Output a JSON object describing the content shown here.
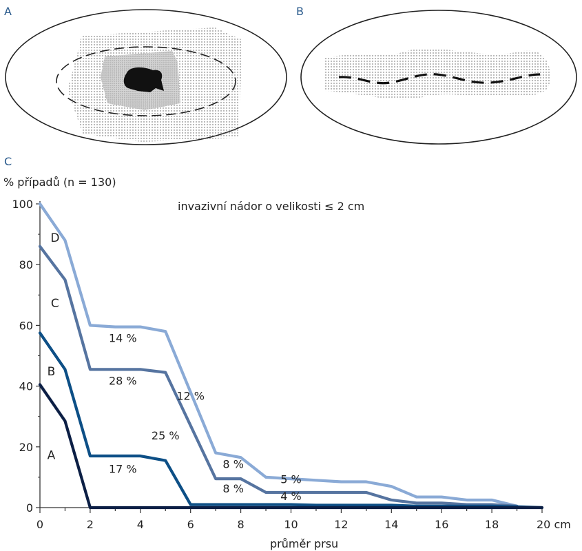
{
  "panels": {
    "a": "A",
    "b": "B",
    "c": "C"
  },
  "chart_data": {
    "type": "line",
    "title": "invazivní nádor o velikosti ≤ 2 cm",
    "ylabel": "% případů (n = 130)",
    "xlabel": "průměr prsu",
    "xlim": [
      0,
      20
    ],
    "ylim": [
      0,
      100
    ],
    "xticks": [
      0,
      2,
      4,
      6,
      8,
      10,
      12,
      14,
      16,
      18,
      20
    ],
    "xtick_labels": [
      "0",
      "2",
      "4",
      "6",
      "8",
      "10",
      "12",
      "14",
      "16",
      "18",
      "20 cm"
    ],
    "yticks": [
      0,
      20,
      40,
      60,
      80,
      100
    ],
    "ytick_labels": [
      "0",
      "20",
      "40",
      "60",
      "80",
      "100"
    ],
    "grid": false,
    "series": [
      {
        "name": "A",
        "color": "#0c1f45",
        "x": [
          0,
          1,
          2,
          20
        ],
        "y": [
          40.5,
          28.5,
          0,
          0
        ]
      },
      {
        "name": "B",
        "color": "#0d4f86",
        "x": [
          0,
          1,
          2,
          3,
          4,
          5,
          6,
          7,
          8,
          9,
          10,
          11,
          12,
          13,
          14,
          15,
          16,
          17,
          18,
          19,
          20
        ],
        "y": [
          57.5,
          45.5,
          17,
          17,
          17,
          15.5,
          1,
          1,
          1,
          1,
          1,
          0.8,
          0.8,
          0.8,
          0.8,
          0.5,
          0.5,
          0.5,
          0.5,
          0.3,
          0
        ]
      },
      {
        "name": "C",
        "color": "#5674a0",
        "x": [
          0,
          1,
          2,
          3,
          4,
          5,
          6,
          7,
          8,
          9,
          10,
          11,
          12,
          13,
          14,
          15,
          16,
          17,
          18,
          19
        ],
        "y": [
          86,
          75,
          45.5,
          45.5,
          45.5,
          44.5,
          27,
          9.5,
          9.5,
          5,
          5,
          5,
          5,
          5,
          2.5,
          1.5,
          1.5,
          1,
          1,
          0.5
        ]
      },
      {
        "name": "D",
        "color": "#8aaad6",
        "x": [
          0,
          1,
          2,
          3,
          4,
          5,
          6,
          7,
          8,
          9,
          10,
          11,
          12,
          13,
          14,
          15,
          16,
          17,
          18,
          19
        ],
        "y": [
          100,
          88,
          60,
          59.5,
          59.5,
          58,
          38,
          18,
          16.5,
          10,
          9.5,
          9,
          8.5,
          8.5,
          7,
          3.5,
          3.5,
          2.5,
          2.5,
          0.5
        ]
      }
    ],
    "annotations": [
      {
        "text": "14 %",
        "x": 3.3,
        "y": 54.5
      },
      {
        "text": "28 %",
        "x": 3.3,
        "y": 40.5
      },
      {
        "text": "12 %",
        "x": 6.0,
        "y": 35.5
      },
      {
        "text": "25 %",
        "x": 5.0,
        "y": 22.5
      },
      {
        "text": "17 %",
        "x": 3.3,
        "y": 11.5
      },
      {
        "text": "8 %",
        "x": 7.7,
        "y": 13.0
      },
      {
        "text": "8 %",
        "x": 7.7,
        "y": 5.0
      },
      {
        "text": "5 %",
        "x": 10.0,
        "y": 8.0
      },
      {
        "text": "4 %",
        "x": 10.0,
        "y": 2.5
      }
    ]
  }
}
